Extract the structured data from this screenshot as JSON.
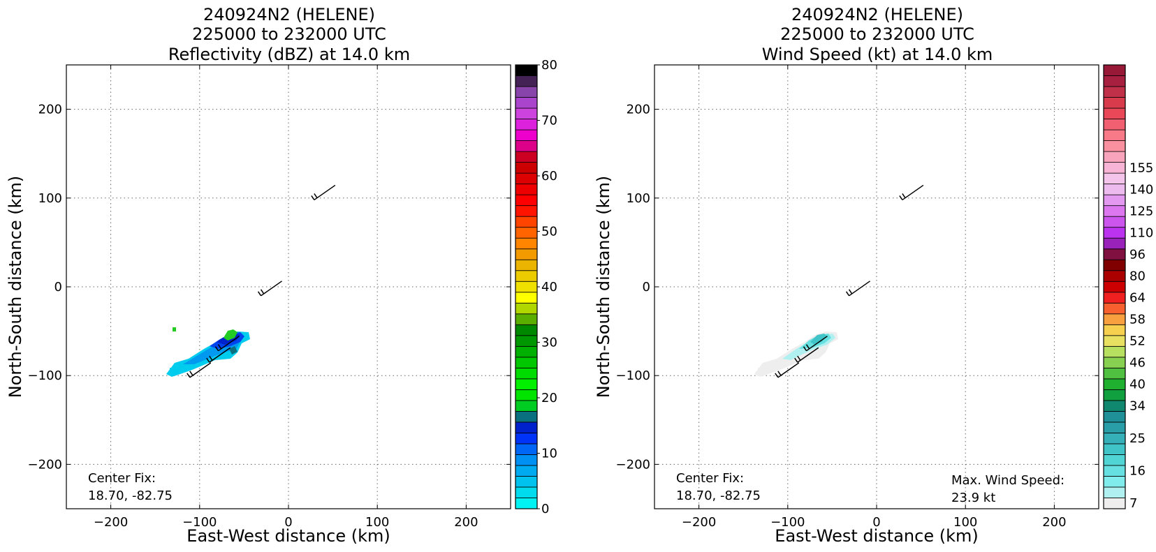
{
  "chart_data": [
    {
      "type": "heatmap",
      "title": [
        "240924N2 (HELENE)",
        "225000 to 232000 UTC",
        "Reflectivity (dBZ) at 14.0 km"
      ],
      "xlabel": "East-West distance (km)",
      "ylabel": "North-South distance (km)",
      "xlim": [
        -250,
        250
      ],
      "ylim": [
        -250,
        250
      ],
      "xticks": [
        -200,
        -100,
        0,
        100,
        200
      ],
      "yticks": [
        -200,
        -100,
        0,
        100,
        200
      ],
      "xtick_labels": [
        "−200",
        "−100",
        "0",
        "100",
        "200"
      ],
      "ytick_labels": [
        "−200",
        "−100",
        "0",
        "100",
        "200"
      ],
      "grid": true,
      "annotation": [
        "Center Fix:",
        "18.70, -82.75"
      ],
      "colorbar": {
        "colors": [
          "#00f2f2",
          "#00dcee",
          "#00c2ee",
          "#00aaf0",
          "#0090f4",
          "#0066f6",
          "#0033f8",
          "#0022cc",
          "#0a7080",
          "#00cc22",
          "#00e400",
          "#00f000",
          "#00dc00",
          "#00c800",
          "#00b000",
          "#009800",
          "#008800",
          "#5aae00",
          "#b0d800",
          "#ffff00",
          "#f0e000",
          "#eccc00",
          "#eab400",
          "#f29a00",
          "#ff8400",
          "#ff6400",
          "#ff4400",
          "#ff1400",
          "#ff0000",
          "#ee0000",
          "#dd0000",
          "#cc0000",
          "#cc0022",
          "#dd0088",
          "#ee00cc",
          "#dd22dd",
          "#cc44dd",
          "#aa44cc",
          "#8844aa",
          "#442255",
          "#000000"
        ],
        "ticks": [
          0,
          10,
          20,
          30,
          40,
          50,
          60,
          70,
          80
        ],
        "tick_labels": [
          "0",
          "10",
          "20",
          "30",
          "40",
          "50",
          "60",
          "70",
          "80"
        ],
        "range": [
          0,
          80
        ]
      },
      "barbs": [
        {
          "x": 40,
          "y": 105
        },
        {
          "x": -20,
          "y": -3
        },
        {
          "x": -68,
          "y": -65
        },
        {
          "x": -78,
          "y": -78
        },
        {
          "x": -100,
          "y": -95
        }
      ]
    },
    {
      "type": "heatmap",
      "title": [
        "240924N2 (HELENE)",
        "225000 to 232000 UTC",
        "Wind Speed (kt) at 14.0 km"
      ],
      "xlabel": "East-West distance (km)",
      "ylabel": "North-South distance (km)",
      "xlim": [
        -250,
        250
      ],
      "ylim": [
        -250,
        250
      ],
      "xticks": [
        -200,
        -100,
        0,
        100,
        200
      ],
      "yticks": [
        -200,
        -100,
        0,
        100,
        200
      ],
      "xtick_labels": [
        "−200",
        "−100",
        "0",
        "100",
        "200"
      ],
      "ytick_labels": [
        "−200",
        "−100",
        "0",
        "100",
        "200"
      ],
      "grid": true,
      "annotation": [
        "Center Fix:",
        "18.70, -82.75"
      ],
      "annotation2": [
        "Max. Wind Speed:",
        "23.9 kt"
      ],
      "colorbar": {
        "colors": [
          "#eeeeee",
          "#b0f0f0",
          "#80ecec",
          "#66e0e0",
          "#50d4d4",
          "#40c4c8",
          "#36b0b8",
          "#2a9ea8",
          "#209098",
          "#108870",
          "#10a040",
          "#20b030",
          "#50c040",
          "#88d050",
          "#b8e060",
          "#e8e060",
          "#f8d050",
          "#f8a040",
          "#f86030",
          "#f02020",
          "#cc0000",
          "#aa0000",
          "#800000",
          "#801040",
          "#9922bb",
          "#bb33ee",
          "#cc55ee",
          "#dd77f0",
          "#e499f0",
          "#eebbee",
          "#f4c4ea",
          "#f8b4d4",
          "#f8a4bc",
          "#f890a0",
          "#f87a88",
          "#f06070",
          "#e84858",
          "#d83c4c",
          "#c03048",
          "#a82040",
          "#981838"
        ],
        "ticks": [
          7,
          16,
          25,
          34,
          40,
          46,
          52,
          58,
          64,
          80,
          96,
          110,
          125,
          140,
          155
        ],
        "tick_labels": [
          "7",
          "16",
          "25",
          "34",
          "40",
          "46",
          "52",
          "58",
          "64",
          "80",
          "96",
          "110",
          "125",
          "140",
          "155"
        ],
        "tick_cells": [
          0,
          3,
          6,
          9,
          11,
          13,
          15,
          17,
          19,
          21,
          23,
          25,
          27,
          29,
          31
        ]
      },
      "barbs": [
        {
          "x": 40,
          "y": 105
        },
        {
          "x": -20,
          "y": -3
        },
        {
          "x": -68,
          "y": -65
        },
        {
          "x": -78,
          "y": -78
        },
        {
          "x": -100,
          "y": -95
        }
      ]
    }
  ]
}
